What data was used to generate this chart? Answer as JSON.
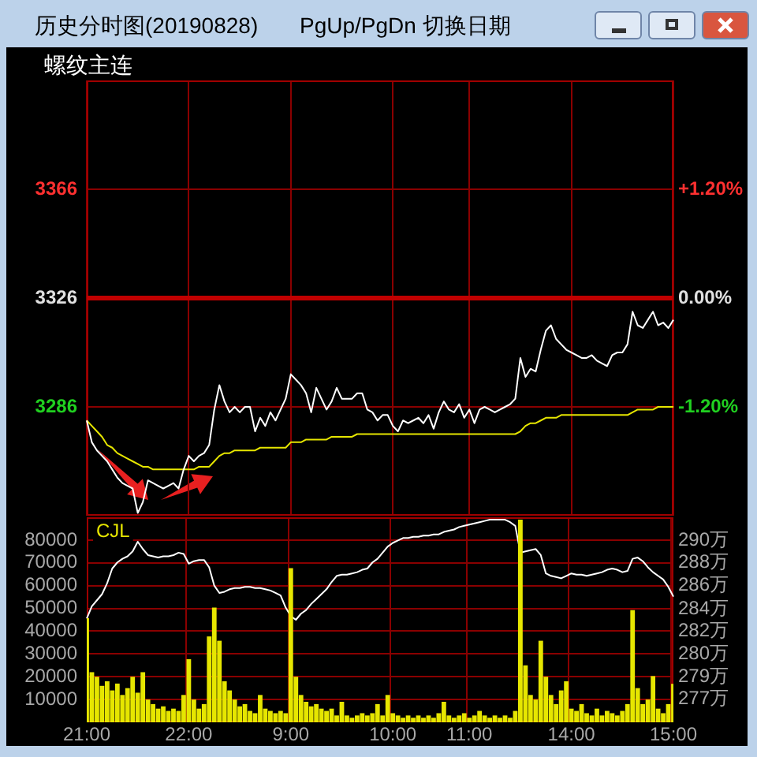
{
  "chart_data": [
    {
      "type": "line",
      "title": "历史分时图(20190828)",
      "subtitle": "螺纹主连",
      "annotations": [
        "PgUp/PgDn 切换日期"
      ],
      "categories": [
        null,
        null,
        null,
        null,
        null,
        null,
        null,
        null,
        null,
        null,
        null,
        null,
        null,
        null,
        null,
        null,
        null,
        null,
        null,
        null,
        null,
        null,
        null,
        null,
        null,
        null,
        null,
        null,
        null,
        null,
        null,
        null,
        null,
        null,
        null,
        null,
        null,
        null,
        null,
        null,
        null,
        null,
        null,
        null,
        null,
        null,
        null,
        null,
        null,
        null,
        null,
        null,
        null,
        null,
        null,
        null,
        null,
        null,
        null,
        null,
        null,
        null,
        null,
        null,
        null,
        null,
        null,
        null,
        null,
        null,
        null,
        null,
        null,
        null,
        null,
        null,
        null,
        null,
        null,
        null,
        null,
        null,
        null,
        null,
        null,
        null,
        null,
        null,
        null,
        null,
        null,
        null,
        null,
        null,
        null,
        null,
        null,
        null,
        null,
        null,
        null,
        null,
        null,
        null,
        null,
        null,
        null,
        null,
        null,
        null,
        null,
        null,
        null,
        null,
        null,
        null
      ],
      "ylim": [
        3246,
        3406
      ],
      "yticks": [
        3366,
        3326,
        3286
      ],
      "y2lim": [
        -2.4,
        2.4
      ],
      "y2ticks": [
        {
          "value": 1.2,
          "label": "+1.20%"
        },
        {
          "value": 0,
          "label": "0.00%"
        },
        {
          "value": -1.2,
          "label": "-1.20%"
        }
      ],
      "tick_labels": "y",
      "grid": true,
      "ref_lines": [
        {
          "axis": "y",
          "value": 3326,
          "color": "#c00000"
        }
      ],
      "series": [
        {
          "type": "line",
          "color": "#ffffff",
          "values": [
            3281,
            3273,
            3270,
            3268,
            3266,
            3263,
            3260,
            3258,
            3257,
            3256,
            3247,
            3251,
            3259,
            3258,
            3257,
            3256,
            3257,
            3258,
            3256,
            3263,
            3268,
            3266,
            3268,
            3269,
            3272,
            3285,
            3294,
            3288,
            3284,
            3286,
            3284,
            3286,
            3286,
            3277,
            3282,
            3279,
            3284,
            3281,
            3285,
            3289,
            3298,
            3296,
            3294,
            3291,
            3284,
            3293,
            3289,
            3285,
            3288,
            3293,
            3289,
            3289,
            3289,
            3291,
            3291,
            3285,
            3284,
            3281,
            3283,
            3283,
            3279,
            3277,
            3281,
            3280,
            3281,
            3282,
            3280,
            3283,
            3278,
            3284,
            3288,
            3285,
            3284,
            3287,
            3282,
            3285,
            3280,
            3285,
            3286,
            3285,
            3284,
            3285,
            3286,
            3287,
            3289,
            3304,
            3297,
            3300,
            3299,
            3307,
            3314,
            3316,
            3311,
            3309,
            3307,
            3306,
            3305,
            3304,
            3304,
            3305,
            3303,
            3302,
            3301,
            3305,
            3306,
            3306,
            3309,
            3321,
            3316,
            3315,
            3318,
            3321,
            3316,
            3317,
            3315,
            3318
          ]
        },
        {
          "type": "line",
          "color": "#e6e600",
          "values": [
            3281,
            3279,
            3277,
            3275,
            3272,
            3271,
            3269,
            3268,
            3267,
            3266,
            3265,
            3264,
            3264,
            3263,
            3263,
            3263,
            3263,
            3263,
            3263,
            3263,
            3263,
            3263,
            3264,
            3264,
            3264,
            3266,
            3268,
            3269,
            3269,
            3270,
            3270,
            3270,
            3270,
            3270,
            3271,
            3271,
            3271,
            3271,
            3271,
            3271,
            3273,
            3273,
            3273,
            3274,
            3274,
            3274,
            3274,
            3274,
            3275,
            3275,
            3275,
            3275,
            3275,
            3276,
            3276,
            3276,
            3276,
            3276,
            3276,
            3276,
            3276,
            3276,
            3276,
            3276,
            3276,
            3276,
            3276,
            3276,
            3276,
            3276,
            3276,
            3276,
            3276,
            3276,
            3276,
            3276,
            3276,
            3276,
            3276,
            3276,
            3276,
            3276,
            3276,
            3276,
            3276,
            3277,
            3279,
            3280,
            3280,
            3281,
            3282,
            3282,
            3282,
            3283,
            3283,
            3283,
            3283,
            3283,
            3283,
            3283,
            3283,
            3283,
            3283,
            3283,
            3283,
            3283,
            3283,
            3284,
            3285,
            3285,
            3285,
            3285,
            3286,
            3286,
            3286,
            3286
          ]
        }
      ]
    },
    {
      "type": "bar",
      "legend": "top left",
      "grid": true,
      "categories": [
        "21:00",
        null,
        null,
        null,
        null,
        null,
        null,
        null,
        null,
        null,
        null,
        null,
        null,
        null,
        null,
        null,
        null,
        null,
        null,
        null,
        "22:00",
        null,
        null,
        null,
        null,
        null,
        null,
        null,
        null,
        null,
        null,
        null,
        null,
        null,
        null,
        null,
        null,
        null,
        null,
        null,
        "9:00",
        null,
        null,
        null,
        null,
        null,
        null,
        null,
        null,
        null,
        null,
        null,
        null,
        null,
        null,
        null,
        null,
        null,
        null,
        null,
        "10:00",
        null,
        null,
        null,
        null,
        null,
        null,
        null,
        null,
        null,
        null,
        null,
        null,
        null,
        null,
        "11:00",
        null,
        null,
        null,
        null,
        null,
        null,
        null,
        null,
        null,
        null,
        null,
        null,
        null,
        null,
        null,
        null,
        null,
        null,
        null,
        "14:00",
        null,
        null,
        null,
        null,
        null,
        null,
        null,
        null,
        null,
        null,
        null,
        null,
        null,
        null,
        null,
        null,
        null,
        null,
        null,
        "15:00"
      ],
      "ylim": [
        0,
        90000
      ],
      "yticks": [
        10000,
        20000,
        30000,
        40000,
        50000,
        60000,
        70000,
        80000
      ],
      "y2lim": [
        274.8,
        291.6
      ],
      "y2ticks": [
        {
          "value": 276.7,
          "label": "277万"
        },
        {
          "value": 278.5,
          "label": "279万"
        },
        {
          "value": 280.4,
          "label": "280万"
        },
        {
          "value": 282.3,
          "label": "282万"
        },
        {
          "value": 284.1,
          "label": "284万"
        },
        {
          "value": 286.0,
          "label": "286万"
        },
        {
          "value": 287.9,
          "label": "288万"
        },
        {
          "value": 289.7,
          "label": "290万"
        }
      ],
      "series": [
        {
          "type": "bar",
          "name": "CJL",
          "color": "#e6e600",
          "values": [
            45700,
            22000,
            20000,
            16000,
            18000,
            14000,
            17000,
            12000,
            15000,
            20000,
            13000,
            22000,
            10000,
            8000,
            6000,
            7000,
            5000,
            6000,
            5000,
            12000,
            27700,
            10000,
            6000,
            8000,
            37700,
            50400,
            35800,
            18000,
            14000,
            10000,
            7000,
            8000,
            5000,
            4000,
            12000,
            6000,
            5000,
            4000,
            5000,
            4000,
            67700,
            20000,
            12000,
            9000,
            7000,
            8000,
            6000,
            5000,
            6000,
            3000,
            9000,
            3000,
            2000,
            3000,
            4000,
            3000,
            4000,
            8000,
            3000,
            12000,
            4000,
            3000,
            2000,
            3000,
            2000,
            3000,
            2000,
            3000,
            2000,
            4000,
            9000,
            3000,
            2000,
            3000,
            4000,
            2000,
            3000,
            5000,
            3000,
            2000,
            3000,
            2000,
            3000,
            2000,
            5000,
            89000,
            25000,
            12000,
            10000,
            35800,
            20000,
            12000,
            8000,
            14000,
            18000,
            6000,
            5000,
            8000,
            4000,
            3000,
            6000,
            3000,
            5000,
            4000,
            3000,
            5000,
            8000,
            49200,
            15000,
            8000,
            10000,
            20300,
            6000,
            4000,
            8000,
            16900
          ]
        },
        {
          "type": "line",
          "axis": "y2",
          "color": "#ffffff",
          "values": [
            283.3,
            284.3,
            284.8,
            285.3,
            286.2,
            287.4,
            287.9,
            288.2,
            288.4,
            288.8,
            289.6,
            289.0,
            288.5,
            288.4,
            288.3,
            288.4,
            288.4,
            288.5,
            288.7,
            288.6,
            287.8,
            288.0,
            288.1,
            288.1,
            287.5,
            286.0,
            285.4,
            285.5,
            285.7,
            285.8,
            285.8,
            285.9,
            285.9,
            285.8,
            285.8,
            285.7,
            285.6,
            285.4,
            285.2,
            284.2,
            283.5,
            283.2,
            283.7,
            284.0,
            284.5,
            284.9,
            285.3,
            285.7,
            286.3,
            286.8,
            286.9,
            286.9,
            287.0,
            287.1,
            287.3,
            287.4,
            287.9,
            288.2,
            288.7,
            289.2,
            289.5,
            289.7,
            289.9,
            289.9,
            290.0,
            290.0,
            290.1,
            290.1,
            290.2,
            290.2,
            290.4,
            290.5,
            290.6,
            290.8,
            290.9,
            291.0,
            291.1,
            291.2,
            291.3,
            291.4,
            291.4,
            291.4,
            291.4,
            291.2,
            290.9,
            288.7,
            288.8,
            288.9,
            289.0,
            288.5,
            287.0,
            286.8,
            286.7,
            286.6,
            286.8,
            287.0,
            286.9,
            286.9,
            286.8,
            286.9,
            287.0,
            287.1,
            287.3,
            287.4,
            287.3,
            287.1,
            287.2,
            288.2,
            288.3,
            288.0,
            287.5,
            287.1,
            286.8,
            286.5,
            285.9,
            285.1
          ]
        }
      ]
    }
  ]
}
